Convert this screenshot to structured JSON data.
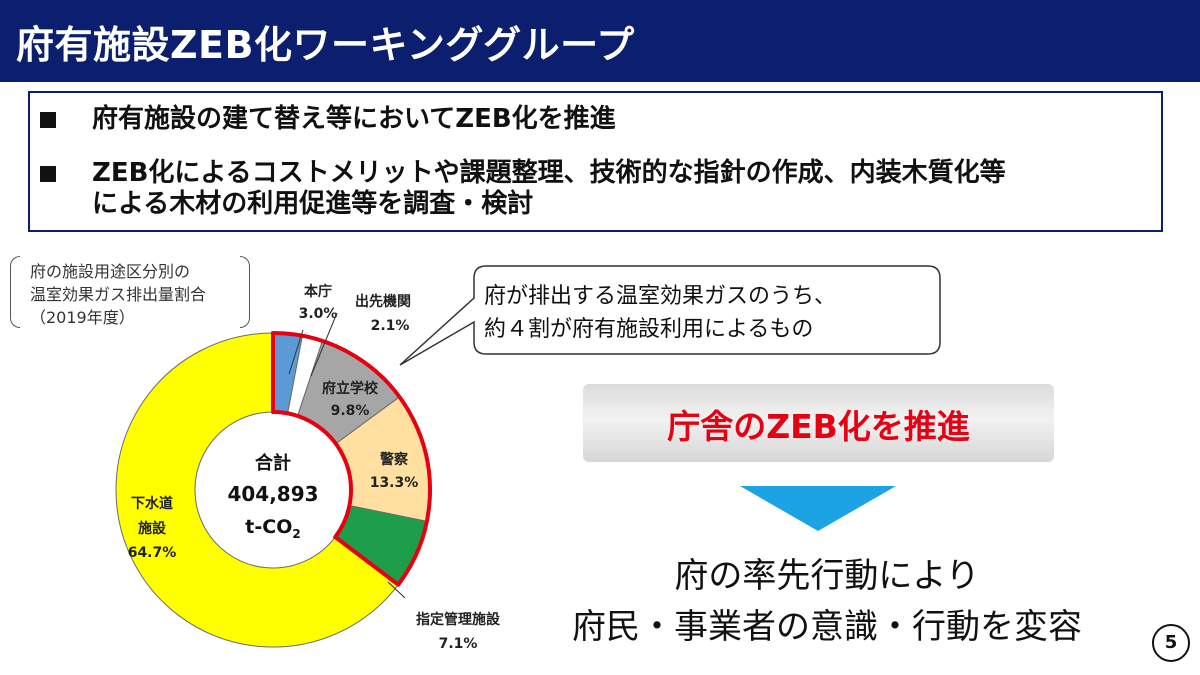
{
  "slide": {
    "title": "府有施設ZEB化ワーキンググループ",
    "bullets": [
      {
        "text": "府有施設の建て替え等においてZEB化を推進"
      },
      {
        "line1": "ZEB化によるコストメリットや課題整理、技術的な指針の作成、内装木質化等",
        "line2": "による木材の利用促進等を調査・検討"
      }
    ],
    "page_number": "5"
  },
  "chart_caption": [
    "府の施設用途区分別の",
    "温室効果ガス排出量割合",
    "（2019年度）"
  ],
  "callout": {
    "line1": "府が排出する温室効果ガスのうち、",
    "line2": "約４割が府有施設利用によるもの"
  },
  "banner": {
    "text": "庁舎のZEB化を推進"
  },
  "conclusion": {
    "line1": "府の率先行動により",
    "line2": "府民・事業者の意識・行動を変容"
  },
  "chart_data": {
    "type": "pie",
    "donut": true,
    "center": {
      "title": "合計",
      "total": "404,893",
      "unit": "t-CO",
      "unit_sub": "2"
    },
    "slices": [
      {
        "name": "本庁",
        "label_lines": [
          "本庁"
        ],
        "value": 3.0,
        "pct": "3.0%",
        "color": "#5b9bd5"
      },
      {
        "name": "出先機関",
        "label_lines": [
          "出先機関"
        ],
        "value": 2.1,
        "pct": "2.1%",
        "color": "#ffffff"
      },
      {
        "name": "府立学校",
        "label_lines": [
          "府立学校"
        ],
        "value": 9.8,
        "pct": "9.8%",
        "color": "#a6a6a6"
      },
      {
        "name": "警察",
        "label_lines": [
          "警察"
        ],
        "value": 13.3,
        "pct": "13.3%",
        "color": "#ffe0a0"
      },
      {
        "name": "指定管理施設",
        "label_lines": [
          "指定管理施設"
        ],
        "value": 7.1,
        "pct": "7.1%",
        "color": "#1e9e4a"
      },
      {
        "name": "下水道施設",
        "label_lines": [
          "下水道",
          "施設"
        ],
        "value": 64.7,
        "pct": "64.7%",
        "color": "#ffff00"
      }
    ],
    "highlight_group": [
      "本庁",
      "出先機関",
      "府立学校",
      "警察",
      "指定管理施設"
    ],
    "highlight_color": "#e60012"
  }
}
